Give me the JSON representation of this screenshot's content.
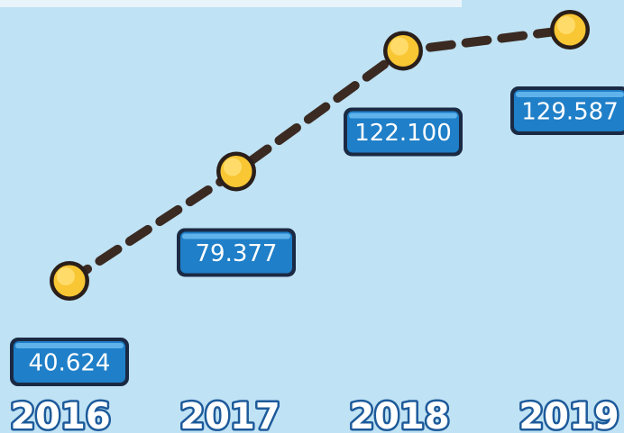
{
  "chart_data": {
    "type": "line",
    "categories": [
      "2016",
      "2017",
      "2018",
      "2019"
    ],
    "values": [
      40624,
      79377,
      122100,
      129587
    ],
    "value_labels": [
      "40.624",
      "79.377",
      "122.100",
      "129.587"
    ],
    "color": "#3a2a22",
    "marker_color": "#f9c634",
    "label_color": "#1f7fc8"
  }
}
